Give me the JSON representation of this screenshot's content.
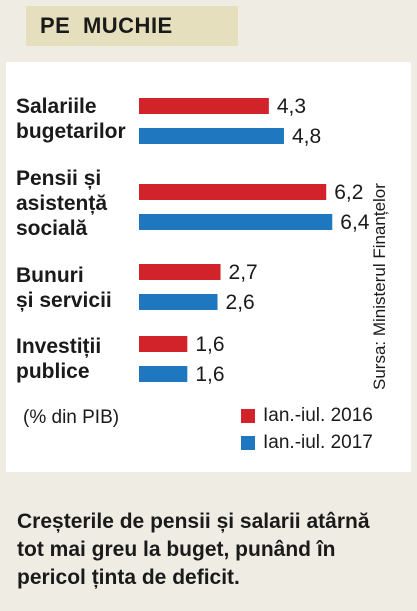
{
  "header": {
    "title": "PE MUCHIE"
  },
  "chart_data": {
    "type": "bar",
    "orientation": "horizontal",
    "categories": [
      "Salariile\nbugetarilor",
      "Pensii și\nasistență\nsocială",
      "Bunuri\nși servicii",
      "Investiții\npublice"
    ],
    "series": [
      {
        "name": "Ian.-iul. 2016",
        "color": "#d2232a",
        "values": [
          4.3,
          6.2,
          2.7,
          1.6
        ]
      },
      {
        "name": "Ian.-iul. 2017",
        "color": "#1f78bf",
        "values": [
          4.8,
          6.4,
          2.6,
          1.6
        ]
      }
    ],
    "value_labels": [
      [
        "4,3",
        "6,2",
        "2,7",
        "1,6"
      ],
      [
        "4,8",
        "6,4",
        "2,6",
        "1,6"
      ]
    ],
    "unit_note": "(% din PIB)",
    "source": "Sursa: Ministerul Finanțelor",
    "legend_position": "bottom-right",
    "grid": false
  },
  "footer": {
    "text": "Creșterile de pensii și salarii atârnă tot mai greu la buget, punând în pericol ținta de deficit."
  }
}
